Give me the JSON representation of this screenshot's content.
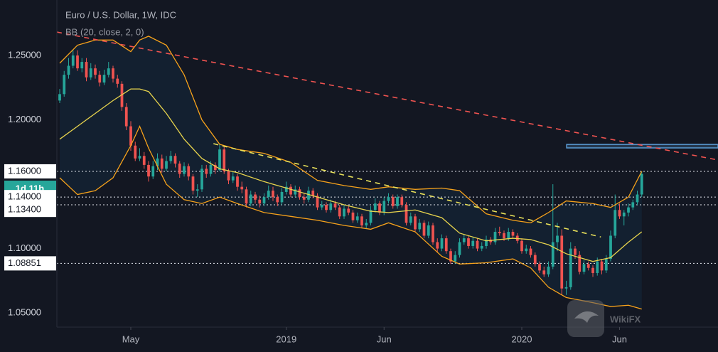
{
  "title": "Euro / U.S. Dollar, 1W, IDC",
  "indicator": "BB (20, close, 2, 0)",
  "countdown": "1d 11h",
  "watermark": "WikiFX",
  "chart_data": {
    "type": "candlestick",
    "up_color": "#26a69a",
    "down_color": "#ef5350",
    "xlim": [
      -0.64,
      148.16
    ],
    "ylim": [
      1.039,
      1.2931
    ],
    "xticks": [
      {
        "value": 16,
        "label": "May"
      },
      {
        "value": 51,
        "label": "2019"
      },
      {
        "value": 73,
        "label": "Jun"
      },
      {
        "value": 104,
        "label": "2020"
      },
      {
        "value": 126,
        "label": "Jun"
      }
    ],
    "yticks": [
      {
        "value": 1.25,
        "label": "1.25000"
      },
      {
        "value": 1.2,
        "label": "1.20000"
      },
      {
        "value": 1.16,
        "label": "1.16000"
      },
      {
        "value": 1.14,
        "label": "1.14000"
      },
      {
        "value": 1.134,
        "label": "1.13400"
      },
      {
        "value": 1.1,
        "label": "1.10000"
      },
      1.08851,
      {
        "value": 1.05,
        "label": "1.05000"
      }
    ],
    "levels": [
      1.16,
      1.14,
      1.134,
      1.08851
    ],
    "ohlc": [
      [
        1.215,
        1.224,
        1.213,
        1.22
      ],
      [
        1.22,
        1.238,
        1.218,
        1.235
      ],
      [
        1.235,
        1.248,
        1.232,
        1.242
      ],
      [
        1.242,
        1.254,
        1.24,
        1.25
      ],
      [
        1.25,
        1.254,
        1.238,
        1.24
      ],
      [
        1.24,
        1.248,
        1.237,
        1.245
      ],
      [
        1.245,
        1.248,
        1.23,
        1.233
      ],
      [
        1.233,
        1.244,
        1.231,
        1.24
      ],
      [
        1.24,
        1.243,
        1.232,
        1.235
      ],
      [
        1.235,
        1.238,
        1.226,
        1.229
      ],
      [
        1.229,
        1.239,
        1.227,
        1.235
      ],
      [
        1.235,
        1.245,
        1.233,
        1.24
      ],
      [
        1.24,
        1.242,
        1.229,
        1.232
      ],
      [
        1.232,
        1.235,
        1.225,
        1.228
      ],
      [
        1.228,
        1.23,
        1.207,
        1.21
      ],
      [
        1.21,
        1.213,
        1.192,
        1.195
      ],
      [
        1.195,
        1.199,
        1.176,
        1.18
      ],
      [
        1.18,
        1.183,
        1.168,
        1.17
      ],
      [
        1.17,
        1.178,
        1.168,
        1.172
      ],
      [
        1.172,
        1.175,
        1.162,
        1.165
      ],
      [
        1.165,
        1.168,
        1.152,
        1.156
      ],
      [
        1.156,
        1.168,
        1.154,
        1.164
      ],
      [
        1.164,
        1.174,
        1.161,
        1.17
      ],
      [
        1.17,
        1.173,
        1.159,
        1.162
      ],
      [
        1.162,
        1.172,
        1.16,
        1.168
      ],
      [
        1.168,
        1.176,
        1.166,
        1.172
      ],
      [
        1.172,
        1.174,
        1.163,
        1.166
      ],
      [
        1.166,
        1.168,
        1.155,
        1.158
      ],
      [
        1.158,
        1.167,
        1.156,
        1.164
      ],
      [
        1.164,
        1.166,
        1.153,
        1.156
      ],
      [
        1.156,
        1.158,
        1.142,
        1.145
      ],
      [
        1.145,
        1.15,
        1.14,
        1.146
      ],
      [
        1.146,
        1.165,
        1.144,
        1.162
      ],
      [
        1.162,
        1.165,
        1.155,
        1.158
      ],
      [
        1.158,
        1.168,
        1.156,
        1.165
      ],
      [
        1.165,
        1.167,
        1.158,
        1.161
      ],
      [
        1.161,
        1.181,
        1.16,
        1.177
      ],
      [
        1.177,
        1.179,
        1.158,
        1.16
      ],
      [
        1.16,
        1.162,
        1.15,
        1.153
      ],
      [
        1.153,
        1.16,
        1.151,
        1.156
      ],
      [
        1.156,
        1.158,
        1.145,
        1.148
      ],
      [
        1.148,
        1.152,
        1.143,
        1.146
      ],
      [
        1.146,
        1.148,
        1.132,
        1.135
      ],
      [
        1.135,
        1.145,
        1.133,
        1.142
      ],
      [
        1.142,
        1.144,
        1.135,
        1.138
      ],
      [
        1.138,
        1.141,
        1.132,
        1.135
      ],
      [
        1.135,
        1.143,
        1.133,
        1.14
      ],
      [
        1.14,
        1.149,
        1.138,
        1.145
      ],
      [
        1.145,
        1.148,
        1.137,
        1.14
      ],
      [
        1.14,
        1.142,
        1.133,
        1.136
      ],
      [
        1.136,
        1.147,
        1.134,
        1.144
      ],
      [
        1.144,
        1.152,
        1.142,
        1.148
      ],
      [
        1.148,
        1.15,
        1.14,
        1.142
      ],
      [
        1.142,
        1.149,
        1.14,
        1.146
      ],
      [
        1.146,
        1.148,
        1.138,
        1.14
      ],
      [
        1.14,
        1.143,
        1.135,
        1.138
      ],
      [
        1.138,
        1.148,
        1.136,
        1.145
      ],
      [
        1.145,
        1.147,
        1.139,
        1.141
      ],
      [
        1.141,
        1.143,
        1.13,
        1.132
      ],
      [
        1.132,
        1.137,
        1.13,
        1.134
      ],
      [
        1.134,
        1.136,
        1.128,
        1.13
      ],
      [
        1.13,
        1.138,
        1.128,
        1.135
      ],
      [
        1.135,
        1.137,
        1.13,
        1.132
      ],
      [
        1.132,
        1.134,
        1.123,
        1.125
      ],
      [
        1.125,
        1.134,
        1.123,
        1.131
      ],
      [
        1.131,
        1.133,
        1.126,
        1.128
      ],
      [
        1.128,
        1.13,
        1.12,
        1.122
      ],
      [
        1.122,
        1.128,
        1.12,
        1.125
      ],
      [
        1.125,
        1.127,
        1.116,
        1.118
      ],
      [
        1.118,
        1.123,
        1.116,
        1.12
      ],
      [
        1.12,
        1.133,
        1.118,
        1.13
      ],
      [
        1.13,
        1.139,
        1.128,
        1.135
      ],
      [
        1.135,
        1.137,
        1.126,
        1.128
      ],
      [
        1.128,
        1.14,
        1.126,
        1.137
      ],
      [
        1.137,
        1.143,
        1.135,
        1.14
      ],
      [
        1.14,
        1.142,
        1.131,
        1.133
      ],
      [
        1.133,
        1.142,
        1.131,
        1.14
      ],
      [
        1.14,
        1.142,
        1.132,
        1.134
      ],
      [
        1.134,
        1.136,
        1.118,
        1.12
      ],
      [
        1.12,
        1.128,
        1.118,
        1.125
      ],
      [
        1.125,
        1.127,
        1.113,
        1.115
      ],
      [
        1.115,
        1.123,
        1.113,
        1.12
      ],
      [
        1.12,
        1.122,
        1.108,
        1.11
      ],
      [
        1.11,
        1.121,
        1.108,
        1.118
      ],
      [
        1.118,
        1.12,
        1.103,
        1.105
      ],
      [
        1.105,
        1.108,
        1.097,
        1.1
      ],
      [
        1.1,
        1.111,
        1.098,
        1.108
      ],
      [
        1.108,
        1.11,
        1.096,
        1.098
      ],
      [
        1.098,
        1.1,
        1.088,
        1.09
      ],
      [
        1.09,
        1.098,
        1.088,
        1.095
      ],
      [
        1.095,
        1.108,
        1.093,
        1.105
      ],
      [
        1.105,
        1.111,
        1.103,
        1.108
      ],
      [
        1.108,
        1.11,
        1.1,
        1.102
      ],
      [
        1.102,
        1.109,
        1.1,
        1.106
      ],
      [
        1.106,
        1.108,
        1.098,
        1.1
      ],
      [
        1.1,
        1.105,
        1.098,
        1.102
      ],
      [
        1.102,
        1.11,
        1.1,
        1.107
      ],
      [
        1.107,
        1.109,
        1.103,
        1.105
      ],
      [
        1.105,
        1.116,
        1.103,
        1.113
      ],
      [
        1.113,
        1.117,
        1.11,
        1.112
      ],
      [
        1.112,
        1.114,
        1.106,
        1.108
      ],
      [
        1.108,
        1.116,
        1.106,
        1.113
      ],
      [
        1.113,
        1.115,
        1.108,
        1.11
      ],
      [
        1.11,
        1.112,
        1.104,
        1.106
      ],
      [
        1.106,
        1.108,
        1.096,
        1.098
      ],
      [
        1.098,
        1.103,
        1.096,
        1.1
      ],
      [
        1.1,
        1.102,
        1.093,
        1.095
      ],
      [
        1.095,
        1.097,
        1.086,
        1.088
      ],
      [
        1.088,
        1.09,
        1.081,
        1.083
      ],
      [
        1.083,
        1.086,
        1.078,
        1.08
      ],
      [
        1.08,
        1.09,
        1.078,
        1.086
      ],
      [
        1.086,
        1.15,
        1.084,
        1.105
      ],
      [
        1.105,
        1.12,
        1.098,
        1.11
      ],
      [
        1.11,
        1.115,
        1.064,
        1.069
      ],
      [
        1.069,
        1.075,
        1.064,
        1.07
      ],
      [
        1.07,
        1.105,
        1.068,
        1.1
      ],
      [
        1.1,
        1.102,
        1.092,
        1.095
      ],
      [
        1.095,
        1.098,
        1.08,
        1.082
      ],
      [
        1.082,
        1.091,
        1.08,
        1.088
      ],
      [
        1.088,
        1.09,
        1.083,
        1.085
      ],
      [
        1.085,
        1.087,
        1.078,
        1.081
      ],
      [
        1.081,
        1.093,
        1.079,
        1.09
      ],
      [
        1.09,
        1.092,
        1.08,
        1.083
      ],
      [
        1.083,
        1.095,
        1.081,
        1.092
      ],
      [
        1.092,
        1.114,
        1.09,
        1.11
      ],
      [
        1.11,
        1.142,
        1.108,
        1.13
      ],
      [
        1.13,
        1.135,
        1.123,
        1.125
      ],
      [
        1.125,
        1.13,
        1.118,
        1.128
      ],
      [
        1.128,
        1.135,
        1.125,
        1.132
      ],
      [
        1.132,
        1.138,
        1.13,
        1.136
      ],
      [
        1.136,
        1.145,
        1.134,
        1.142
      ],
      [
        1.142,
        1.16,
        1.14,
        1.158
      ]
    ],
    "bb_x": [
      0,
      4,
      8,
      12,
      16,
      18,
      20,
      24,
      28,
      32,
      36,
      40,
      46,
      52,
      58,
      64,
      70,
      74,
      80,
      86,
      90,
      96,
      102,
      106,
      110,
      114,
      120,
      124,
      128,
      131
    ],
    "bands": [
      {
        "color": "#f7a21b",
        "values": [
          1.244,
          1.258,
          1.262,
          1.262,
          1.253,
          1.262,
          1.265,
          1.258,
          1.235,
          1.2,
          1.181,
          1.177,
          1.174,
          1.167,
          1.153,
          1.149,
          1.146,
          1.148,
          1.146,
          1.147,
          1.145,
          1.127,
          1.122,
          1.12,
          1.128,
          1.137,
          1.135,
          1.132,
          1.14,
          1.16
        ]
      },
      {
        "color": "#e8d44d",
        "values": [
          1.185,
          1.195,
          1.205,
          1.215,
          1.224,
          1.224,
          1.222,
          1.205,
          1.185,
          1.17,
          1.162,
          1.159,
          1.152,
          1.146,
          1.14,
          1.134,
          1.129,
          1.128,
          1.13,
          1.124,
          1.112,
          1.106,
          1.108,
          1.107,
          1.103,
          1.096,
          1.09,
          1.093,
          1.105,
          1.113
        ]
      },
      {
        "color": "#f7a21b",
        "values": [
          1.155,
          1.142,
          1.145,
          1.155,
          1.18,
          1.195,
          1.178,
          1.15,
          1.138,
          1.135,
          1.14,
          1.135,
          1.128,
          1.125,
          1.122,
          1.118,
          1.115,
          1.12,
          1.113,
          1.094,
          1.088,
          1.089,
          1.092,
          1.085,
          1.07,
          1.062,
          1.058,
          1.055,
          1.056,
          1.053
        ]
      }
    ],
    "trendlines": [
      {
        "color": "#ef5350",
        "x": [
          -0.64,
          148.16
        ],
        "values": [
          1.2682,
          1.1688
        ]
      },
      {
        "color": "#e8e05a",
        "x": [
          34.6,
          121.8
        ],
        "values": [
          1.1815,
          1.109
        ]
      }
    ],
    "zone": {
      "color": "#5b9bd5",
      "x": [
        114.1,
        148.16
      ],
      "values": [
        1.1782,
        1.1809
      ]
    }
  }
}
